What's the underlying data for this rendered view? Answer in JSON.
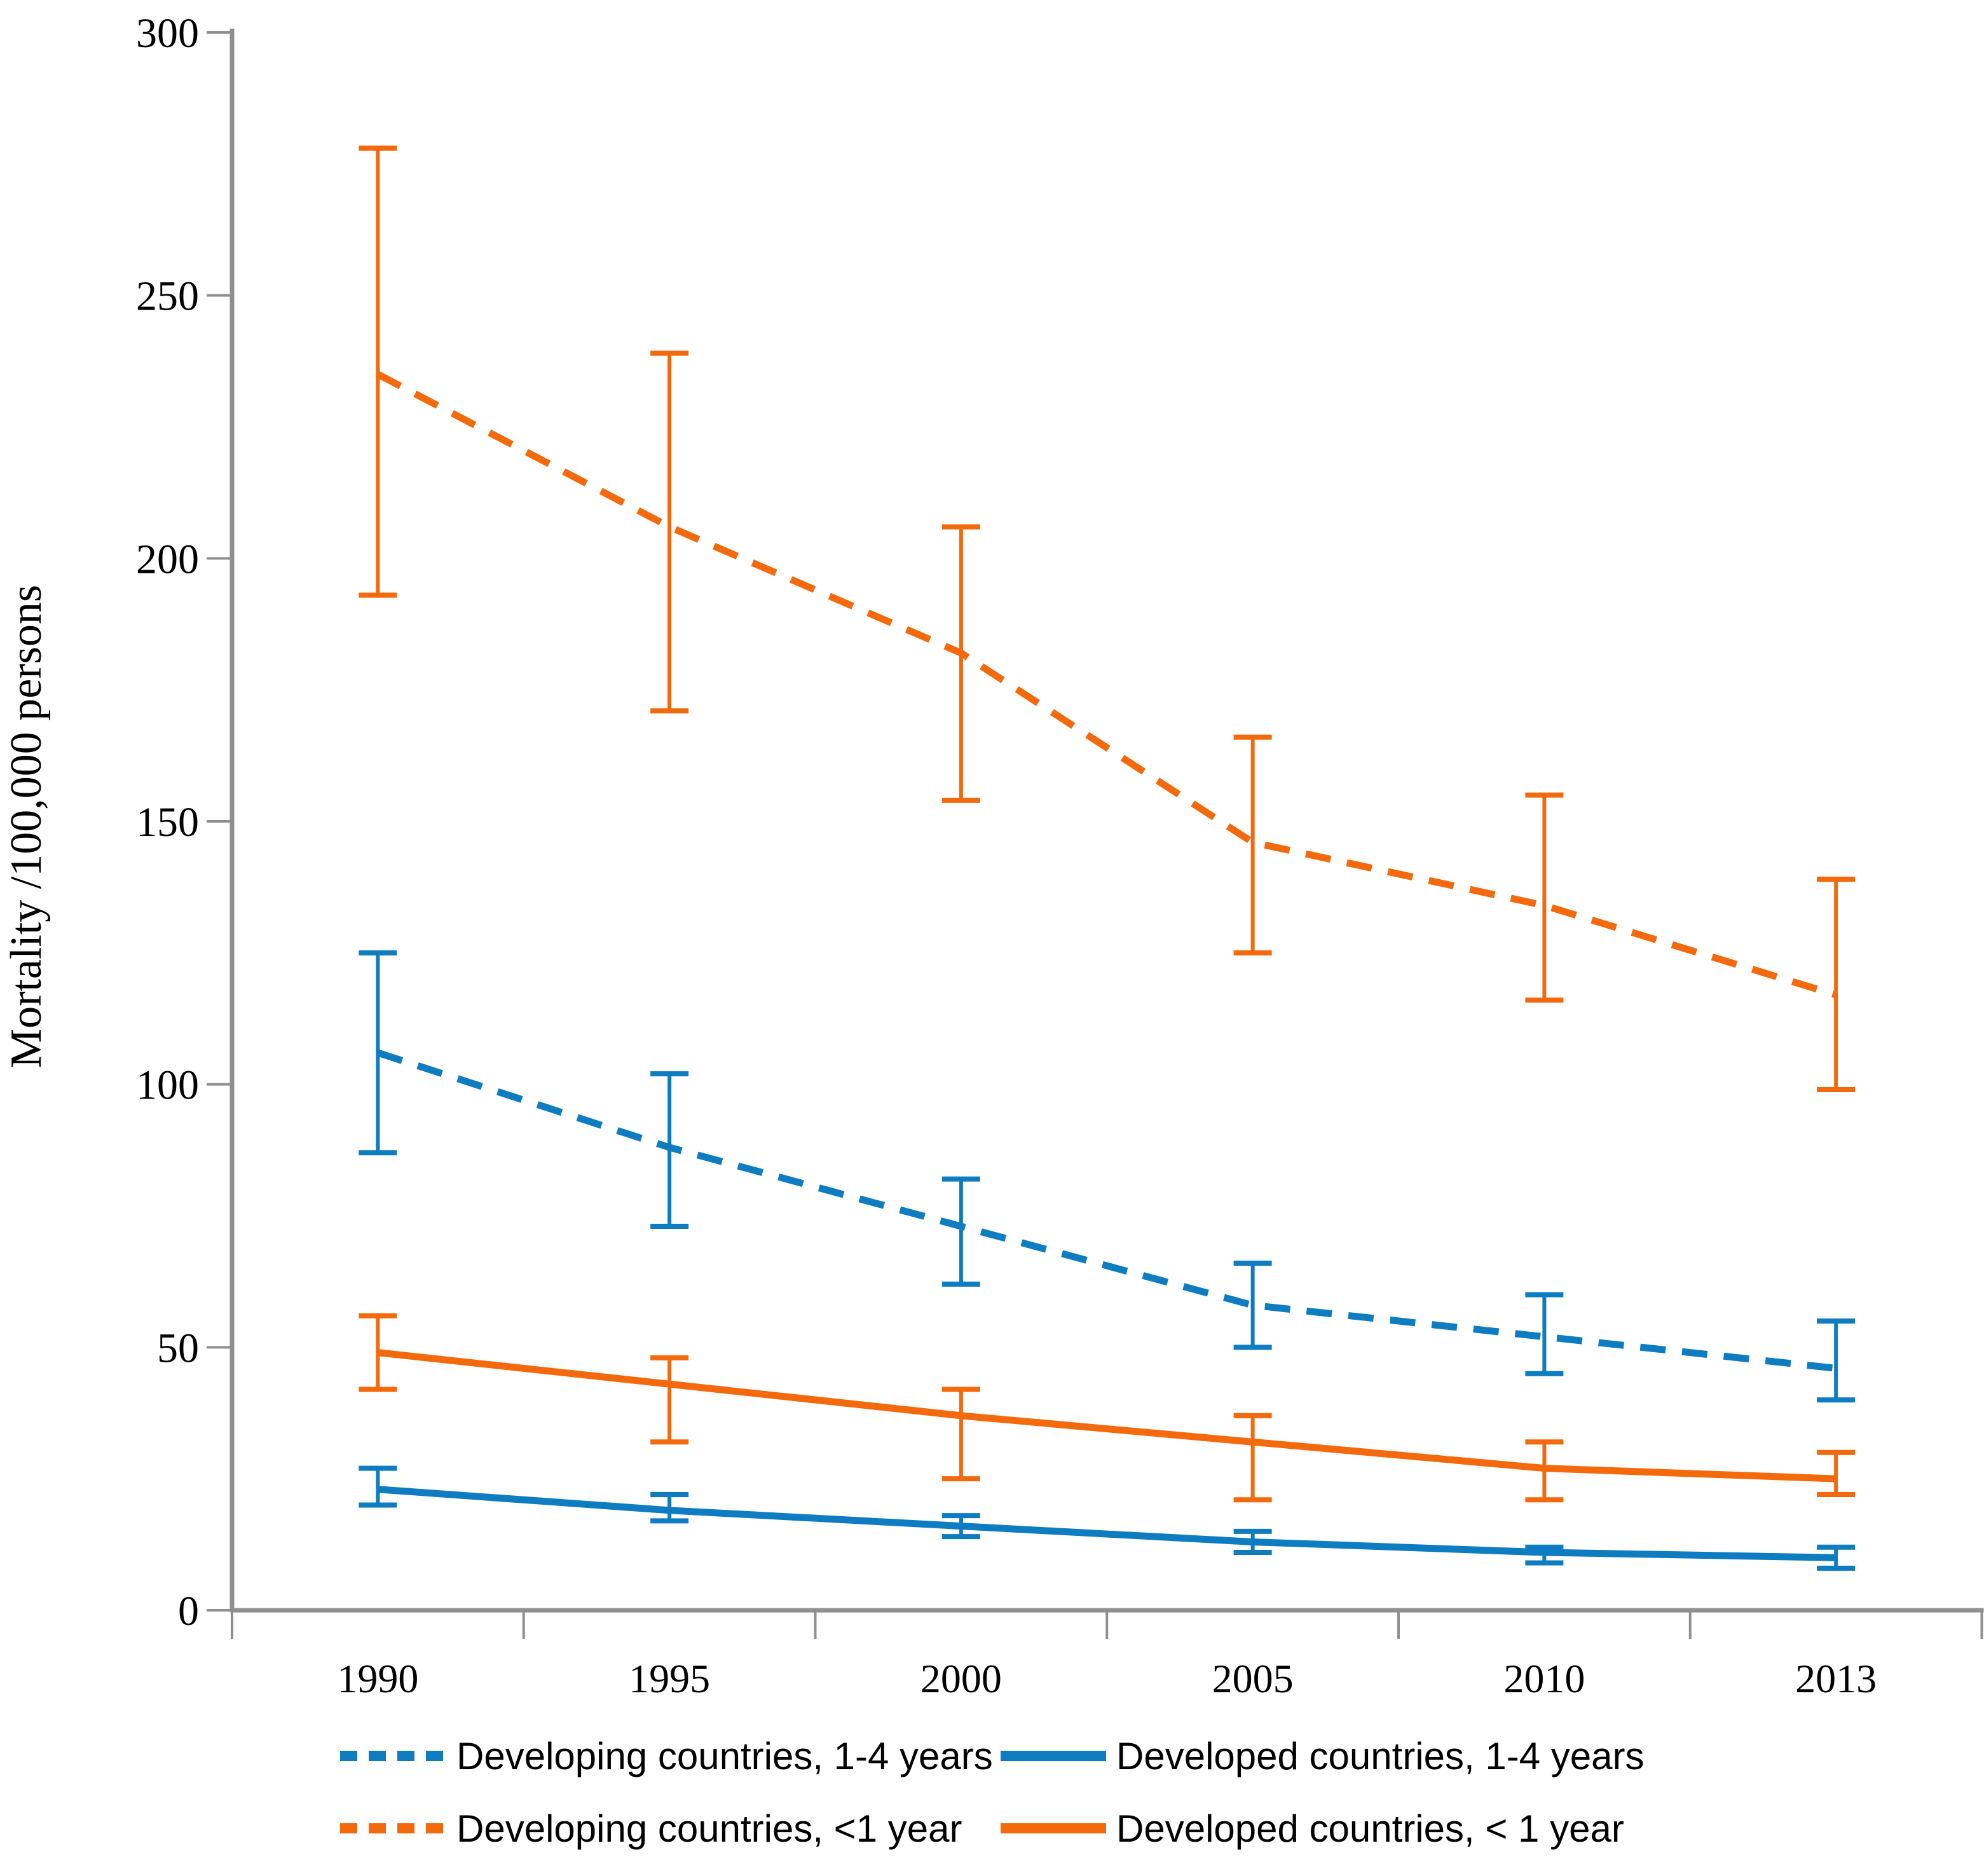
{
  "figure": {
    "background": "#ffffff",
    "axis_color": "#8f8f8f",
    "text_color": "#000000"
  },
  "chart_data": {
    "type": "line",
    "title": "",
    "xlabel": "",
    "ylabel": "Mortality /100,000 persons",
    "categories": [
      "1990",
      "1995",
      "2000",
      "2005",
      "2010",
      "2013"
    ],
    "ylim": [
      0,
      300
    ],
    "y_ticks": [
      0,
      50,
      100,
      150,
      200,
      250,
      300
    ],
    "grid": false,
    "error_bars": true,
    "legend_position": "bottom",
    "series": [
      {
        "name": "Developing countries, 1-4 years",
        "color": "#0e7cc1",
        "style": "dashed",
        "values": [
          106,
          88,
          73,
          58,
          52,
          46
        ],
        "ci_low": [
          87,
          73,
          62,
          50,
          45,
          40
        ],
        "ci_high": [
          125,
          102,
          82,
          66,
          60,
          55
        ]
      },
      {
        "name": "Developed countries, 1-4 years",
        "color": "#0e7cc1",
        "style": "solid",
        "values": [
          23,
          19,
          16,
          13,
          11,
          10
        ],
        "ci_low": [
          20,
          17,
          14,
          11,
          9,
          8
        ],
        "ci_high": [
          27,
          22,
          18,
          15,
          12,
          12
        ]
      },
      {
        "name": "Developing countries, <1 year",
        "color": "#f4690c",
        "style": "dashed",
        "values": [
          235,
          206,
          182,
          146,
          134,
          117
        ],
        "ci_low": [
          193,
          171,
          154,
          125,
          116,
          99
        ],
        "ci_high": [
          278,
          239,
          206,
          166,
          155,
          139
        ]
      },
      {
        "name": "Developed countries, < 1 year",
        "color": "#f4690c",
        "style": "solid",
        "values": [
          49,
          43,
          37,
          32,
          27,
          25
        ],
        "ci_low": [
          42,
          32,
          25,
          21,
          21,
          22
        ],
        "ci_high": [
          56,
          48,
          42,
          37,
          32,
          30
        ]
      }
    ],
    "legend_rows": [
      [
        "Developing countries, 1-4 years",
        "Developed countries, 1-4 years"
      ],
      [
        "Developing countries, <1 year",
        "Developed countries, < 1 year"
      ]
    ]
  }
}
